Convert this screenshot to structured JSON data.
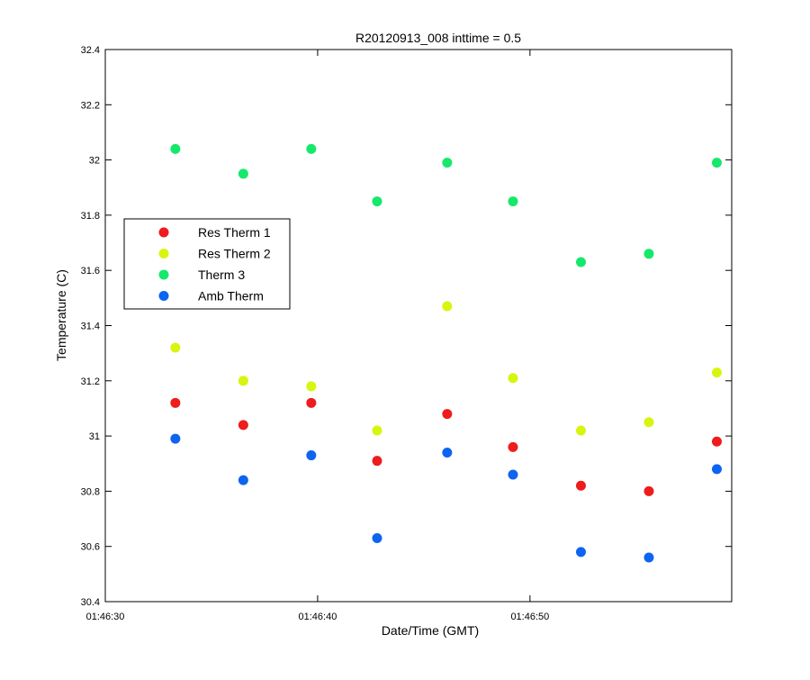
{
  "chart_data": {
    "type": "scatter",
    "title": "R20120913_008 inttime = 0.5",
    "xlabel": "Date/Time (GMT)",
    "ylabel": "Temperature (C)",
    "x_axis": {
      "kind": "time",
      "range": [
        "01:46:30",
        "01:46:59.5"
      ],
      "ticks": [
        "01:46:30",
        "01:46:40",
        "01:46:50"
      ]
    },
    "y_axis": {
      "range": [
        30.4,
        32.4
      ],
      "ticks": [
        "30.4",
        "30.6",
        "30.8",
        "31",
        "31.2",
        "31.4",
        "31.6",
        "31.8",
        "32",
        "32.2",
        "32.4"
      ]
    },
    "grid": false,
    "legend_position": "left",
    "x": [
      "01:46:33.3",
      "01:46:36.5",
      "01:46:39.7",
      "01:46:42.8",
      "01:46:46.1",
      "01:46:49.2",
      "01:46:52.4",
      "01:46:55.6",
      "01:46:58.8"
    ],
    "series": [
      {
        "name": "Res Therm 1",
        "color": "#ee1c1c",
        "values": [
          31.12,
          31.04,
          31.12,
          30.91,
          31.08,
          30.96,
          30.82,
          30.8,
          30.98
        ]
      },
      {
        "name": "Res Therm 2",
        "color": "#d7f50f",
        "values": [
          31.32,
          31.2,
          31.18,
          31.02,
          31.47,
          31.21,
          31.02,
          31.05,
          31.23
        ]
      },
      {
        "name": "Therm 3",
        "color": "#16e86c",
        "values": [
          32.04,
          31.95,
          32.04,
          31.85,
          31.99,
          31.85,
          31.63,
          31.66,
          31.99
        ]
      },
      {
        "name": "Amb Therm",
        "color": "#0d64f0",
        "values": [
          30.99,
          30.84,
          30.93,
          30.63,
          30.94,
          30.86,
          30.58,
          30.56,
          30.88
        ]
      }
    ]
  }
}
